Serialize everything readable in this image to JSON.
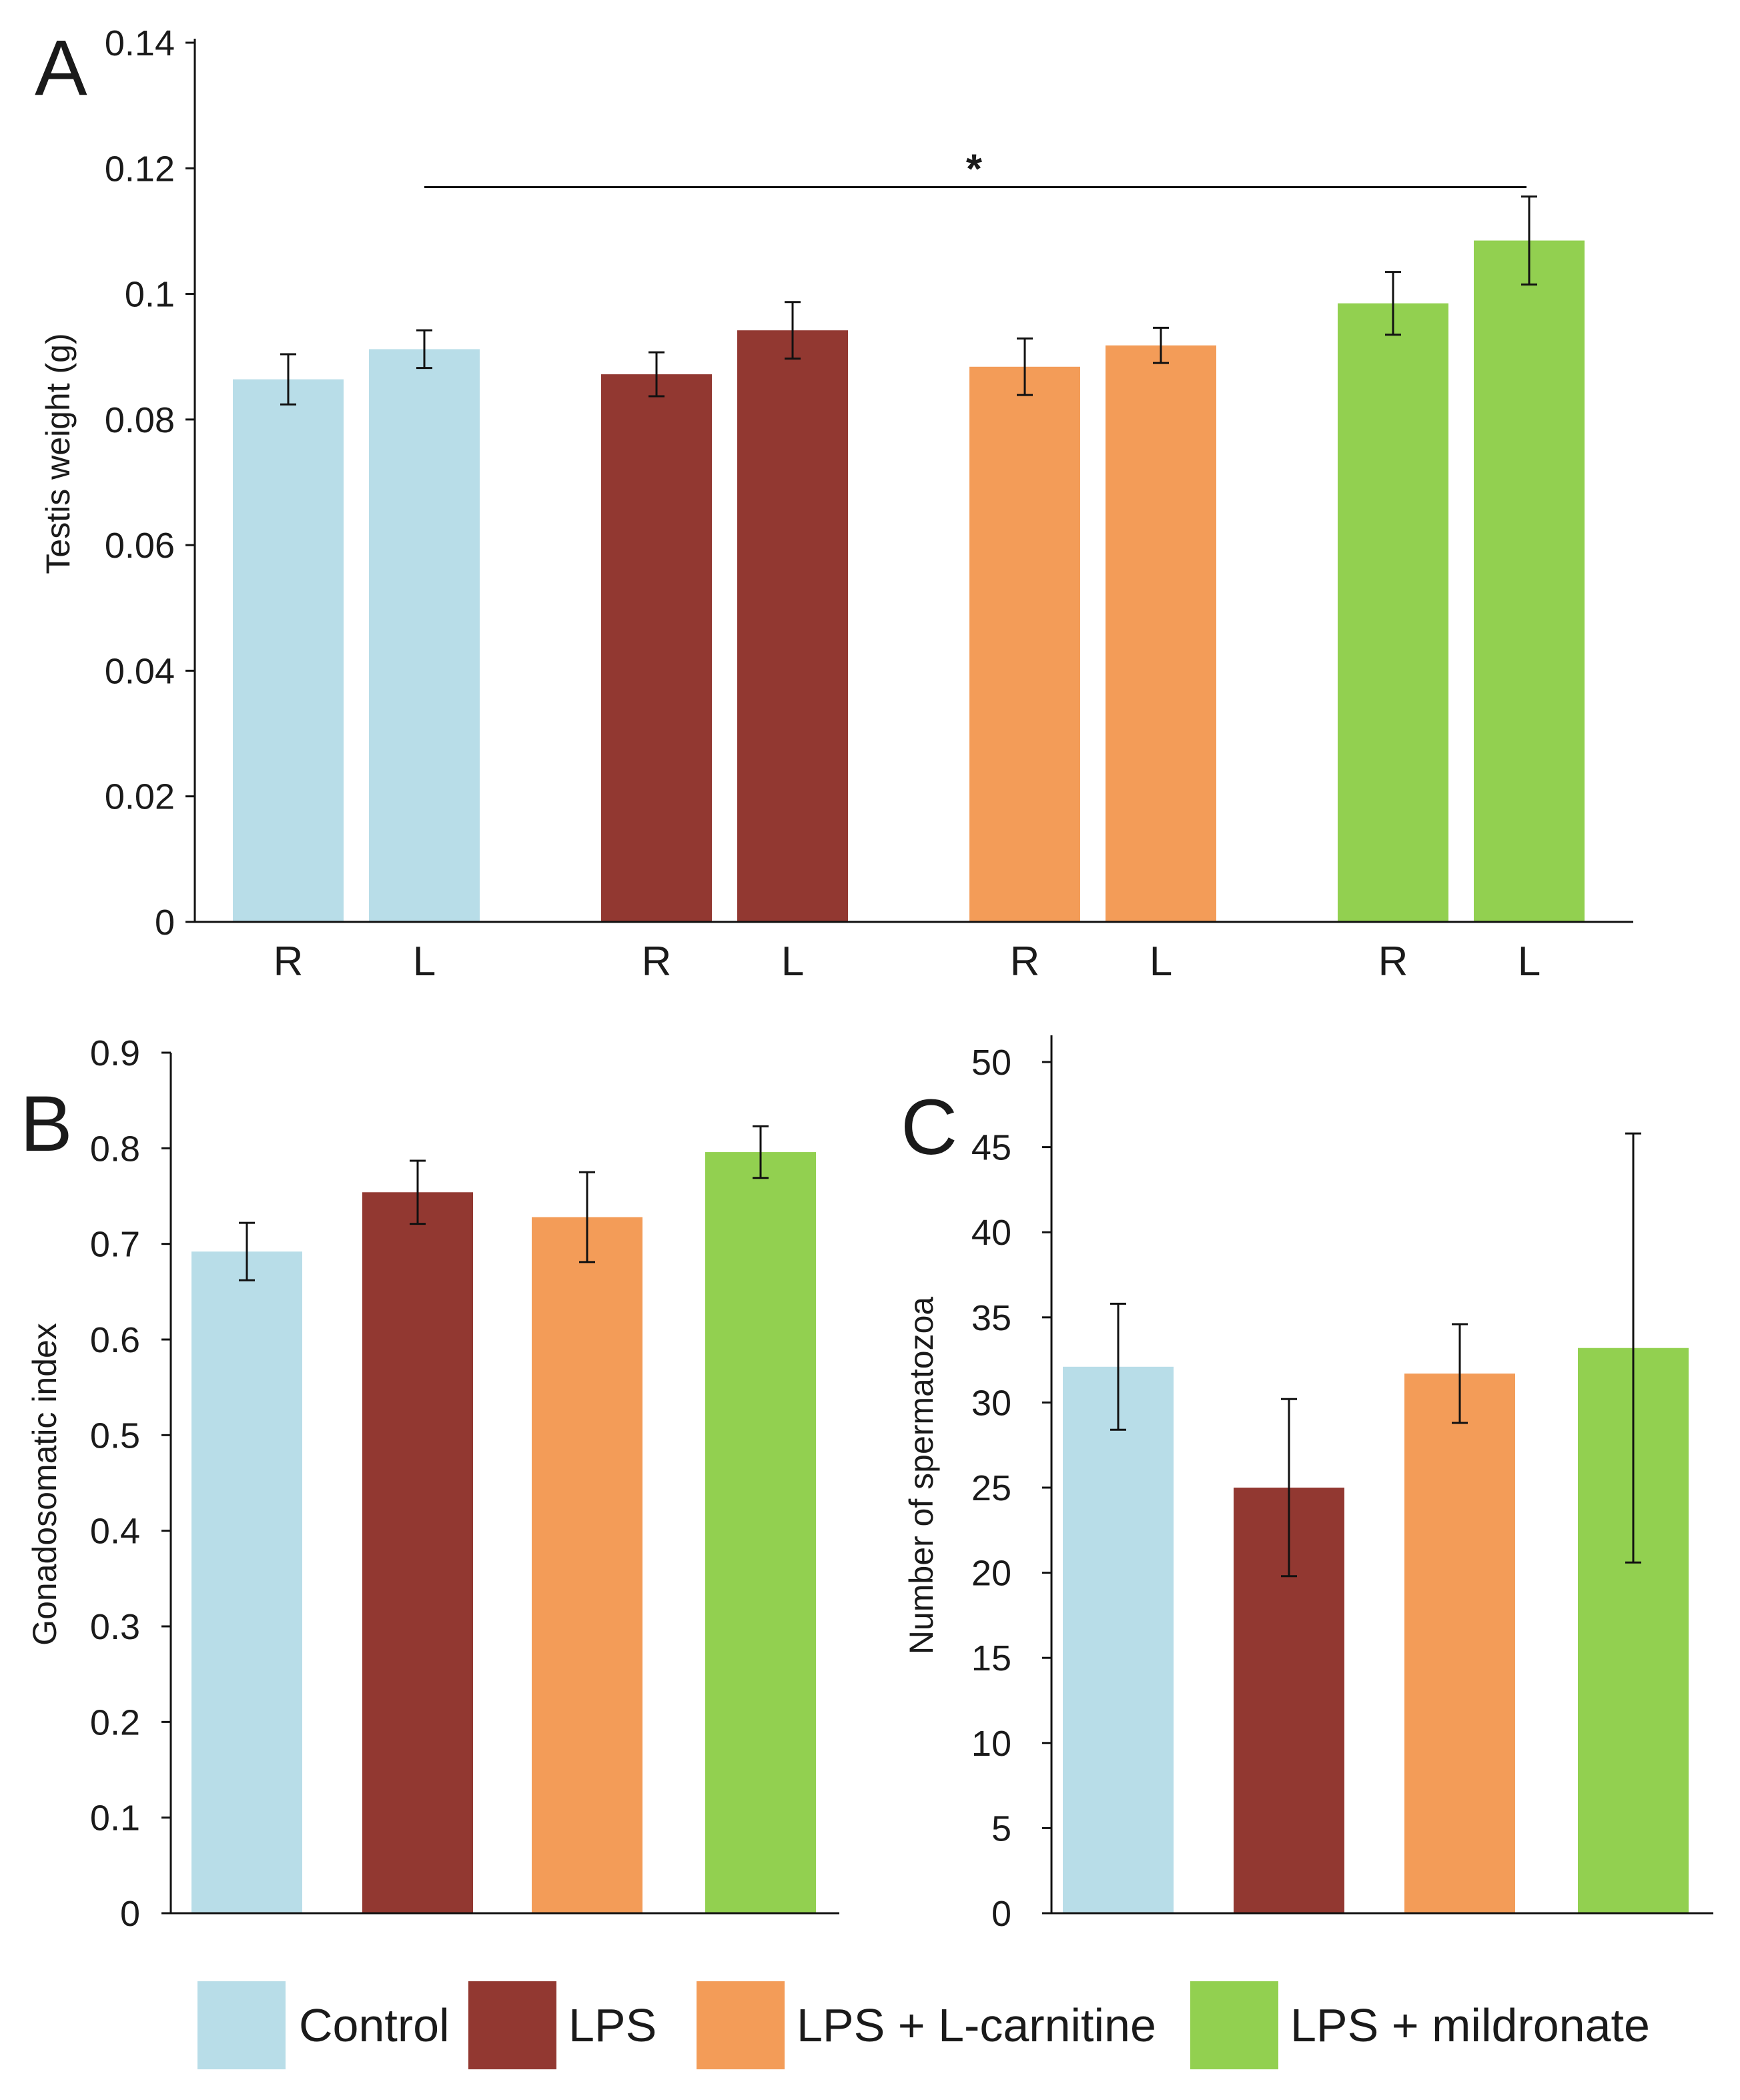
{
  "legend": {
    "entries": [
      {
        "label": "Control",
        "color": "#b8dde8"
      },
      {
        "label": "LPS",
        "color": "#923831"
      },
      {
        "label": "LPS + L-carnitine",
        "color": "#f39c58"
      },
      {
        "label": "LPS + mildronate",
        "color": "#92d050"
      }
    ]
  },
  "chart_data": [
    {
      "panel": "A",
      "type": "bar",
      "ylabel": "Testis weight (g)",
      "ylim": [
        0,
        0.14
      ],
      "yticks": [
        "0",
        "0.02",
        "0.04",
        "0.06",
        "0.08",
        "0.1",
        "0.12",
        "0.14"
      ],
      "categories": [
        "R",
        "L",
        "R",
        "L",
        "R",
        "L",
        "R",
        "L"
      ],
      "groups": [
        "Control",
        "Control",
        "LPS",
        "LPS",
        "LPS + L-carnitine",
        "LPS + L-carnitine",
        "LPS + mildronate",
        "LPS + mildronate"
      ],
      "values": [
        0.0864,
        0.0912,
        0.0872,
        0.0942,
        0.0884,
        0.0918,
        0.0985,
        0.1085
      ],
      "errors": [
        0.004,
        0.003,
        0.0035,
        0.0045,
        0.0045,
        0.0028,
        0.005,
        0.007
      ],
      "significance": {
        "from_index": 1,
        "to_index": 7,
        "label": "*",
        "y": 0.117
      }
    },
    {
      "panel": "B",
      "type": "bar",
      "ylabel": "Gonadosomatic index",
      "ylim": [
        0,
        0.9
      ],
      "yticks": [
        "0",
        "0.1",
        "0.2",
        "0.3",
        "0.4",
        "0.5",
        "0.6",
        "0.7",
        "0.8",
        "0.9"
      ],
      "groups": [
        "Control",
        "LPS",
        "LPS + L-carnitine",
        "LPS + mildronate"
      ],
      "values": [
        0.692,
        0.754,
        0.728,
        0.796
      ],
      "errors": [
        0.03,
        0.033,
        0.047,
        0.027
      ]
    },
    {
      "panel": "C",
      "type": "bar",
      "ylabel": "Number of spermatozoa",
      "ylim": [
        0,
        50
      ],
      "yticks": [
        "0",
        "5",
        "10",
        "15",
        "20",
        "25",
        "30",
        "35",
        "40",
        "45",
        "50"
      ],
      "groups": [
        "Control",
        "LPS",
        "LPS + L-carnitine",
        "LPS + mildronate"
      ],
      "values": [
        32.1,
        25.0,
        31.7,
        33.2
      ],
      "errors": [
        3.7,
        5.2,
        2.9,
        12.6
      ]
    }
  ]
}
